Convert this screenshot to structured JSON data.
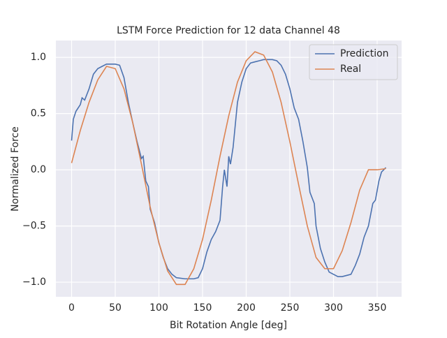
{
  "chart_data": {
    "type": "line",
    "title": "LSTM Force Prediction for 12 data Channel 48",
    "xlabel": "Bit Rotation Angle [deg]",
    "ylabel": "Normalized Force",
    "xlim": [
      -18,
      378
    ],
    "ylim": [
      -1.13,
      1.15
    ],
    "xticks": [
      0,
      50,
      100,
      150,
      200,
      250,
      300,
      350
    ],
    "yticks": [
      {
        "value": -1.0,
        "label": "−1.0"
      },
      {
        "value": -0.5,
        "label": "−0.5"
      },
      {
        "value": 0.0,
        "label": "0.0"
      },
      {
        "value": 0.5,
        "label": "0.5"
      },
      {
        "value": 1.0,
        "label": "1.0"
      }
    ],
    "grid": true,
    "legend": "upper right",
    "series": [
      {
        "name": "Prediction",
        "color": "#4c72b0",
        "x": [
          0,
          2,
          5,
          10,
          12,
          15,
          20,
          25,
          30,
          35,
          40,
          45,
          50,
          55,
          60,
          65,
          70,
          75,
          80,
          82,
          85,
          88,
          90,
          95,
          100,
          105,
          110,
          115,
          120,
          130,
          140,
          145,
          150,
          155,
          160,
          165,
          170,
          173,
          175,
          178,
          180,
          182,
          185,
          190,
          195,
          200,
          205,
          210,
          215,
          220,
          225,
          230,
          235,
          240,
          245,
          250,
          255,
          260,
          265,
          270,
          273,
          278,
          280,
          285,
          290,
          295,
          300,
          305,
          310,
          315,
          320,
          325,
          330,
          335,
          340,
          345,
          348,
          352,
          355,
          360
        ],
        "values": [
          0.26,
          0.45,
          0.52,
          0.58,
          0.64,
          0.62,
          0.72,
          0.85,
          0.9,
          0.92,
          0.94,
          0.94,
          0.94,
          0.93,
          0.82,
          0.6,
          0.42,
          0.25,
          0.1,
          0.12,
          -0.1,
          -0.15,
          -0.35,
          -0.47,
          -0.65,
          -0.78,
          -0.88,
          -0.93,
          -0.96,
          -0.97,
          -0.97,
          -0.96,
          -0.88,
          -0.73,
          -0.62,
          -0.55,
          -0.45,
          -0.15,
          0.0,
          -0.15,
          0.12,
          0.05,
          0.2,
          0.6,
          0.78,
          0.9,
          0.95,
          0.96,
          0.97,
          0.98,
          0.98,
          0.98,
          0.97,
          0.93,
          0.85,
          0.72,
          0.55,
          0.45,
          0.25,
          0.02,
          -0.2,
          -0.3,
          -0.5,
          -0.7,
          -0.82,
          -0.91,
          -0.93,
          -0.95,
          -0.95,
          -0.94,
          -0.93,
          -0.85,
          -0.75,
          -0.6,
          -0.5,
          -0.3,
          -0.27,
          -0.1,
          -0.02,
          0.02
        ]
      },
      {
        "name": "Real",
        "color": "#dd8452",
        "x": [
          0,
          10,
          20,
          30,
          40,
          50,
          60,
          70,
          80,
          90,
          100,
          110,
          120,
          130,
          140,
          150,
          160,
          170,
          180,
          190,
          200,
          210,
          220,
          230,
          240,
          250,
          260,
          270,
          280,
          290,
          300,
          310,
          320,
          330,
          340,
          350,
          360
        ],
        "values": [
          0.06,
          0.35,
          0.6,
          0.8,
          0.92,
          0.9,
          0.72,
          0.42,
          0.05,
          -0.33,
          -0.65,
          -0.9,
          -1.02,
          -1.02,
          -0.88,
          -0.62,
          -0.27,
          0.12,
          0.48,
          0.78,
          0.97,
          1.05,
          1.02,
          0.87,
          0.6,
          0.25,
          -0.13,
          -0.5,
          -0.78,
          -0.88,
          -0.88,
          -0.72,
          -0.47,
          -0.18,
          0.0,
          0.0,
          0.01
        ]
      }
    ]
  }
}
